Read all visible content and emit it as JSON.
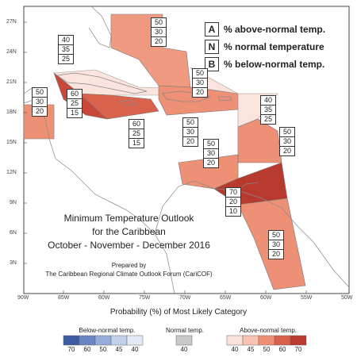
{
  "legend_key": [
    {
      "letter": "A",
      "text": "% above-normal temp."
    },
    {
      "letter": "N",
      "text": "% normal temperature"
    },
    {
      "letter": "B",
      "text": "% below-normal temp."
    }
  ],
  "map_title": {
    "line1": "Minimum Temperature Outlook",
    "line2": "for the Caribbean",
    "line3": "October - November - December 2016",
    "prepared1": "Prepared by",
    "prepared2": "The Caribbean Regional Climate Outlook Forum (CariCOF)"
  },
  "lat_ticks": [
    "27N",
    "24N",
    "21N",
    "18N",
    "15N",
    "12N",
    "9N",
    "6N",
    "3N"
  ],
  "lon_ticks": [
    "90W",
    "85W",
    "80W",
    "75W",
    "70W",
    "65W",
    "60W",
    "55W",
    "50W"
  ],
  "forecast_boxes": [
    {
      "id": "bahamas",
      "values": [
        "50",
        "30",
        "20"
      ]
    },
    {
      "id": "cuba-east",
      "values": [
        "40",
        "35",
        "25"
      ]
    },
    {
      "id": "cuba-west",
      "values": [
        "60",
        "25",
        "15"
      ]
    },
    {
      "id": "belize-yucatan",
      "values": [
        "50",
        "30",
        "20"
      ]
    },
    {
      "id": "jamaica-south",
      "values": [
        "60",
        "25",
        "15"
      ]
    },
    {
      "id": "hispaniola",
      "values": [
        "50",
        "30",
        "20"
      ]
    },
    {
      "id": "puerto-rico",
      "values": [
        "50",
        "30",
        "20"
      ]
    },
    {
      "id": "leeward",
      "values": [
        "40",
        "35",
        "25"
      ]
    },
    {
      "id": "windward",
      "values": [
        "50",
        "30",
        "20"
      ]
    },
    {
      "id": "abc-islands",
      "values": [
        "50",
        "30",
        "20"
      ]
    },
    {
      "id": "trinidad-coast",
      "values": [
        "70",
        "20",
        "10"
      ]
    },
    {
      "id": "guianas",
      "values": [
        "50",
        "30",
        "20"
      ]
    }
  ],
  "colorbar": {
    "title": "Probability (%) of Most Likely Category",
    "below_label": "Below-normal temp.",
    "normal_label": "Normal temp.",
    "above_label": "Above-normal temp.",
    "below_values": [
      "70",
      "60",
      "50",
      "45",
      "40"
    ],
    "normal_values": [
      "40"
    ],
    "above_values": [
      "40",
      "45",
      "50",
      "60",
      "70"
    ],
    "below_colors": [
      "#3b5aa0",
      "#6a86c2",
      "#97acd8",
      "#c3d0ea",
      "#e3e9f5"
    ],
    "normal_color": "#c8c8c8",
    "above_colors": [
      "#fbe3dc",
      "#f7c3b2",
      "#ee9075",
      "#d8604a",
      "#b83a2e"
    ]
  },
  "colors": {
    "ocean": "#ffffff",
    "land_outline": "#888888",
    "frame": "#444444"
  }
}
